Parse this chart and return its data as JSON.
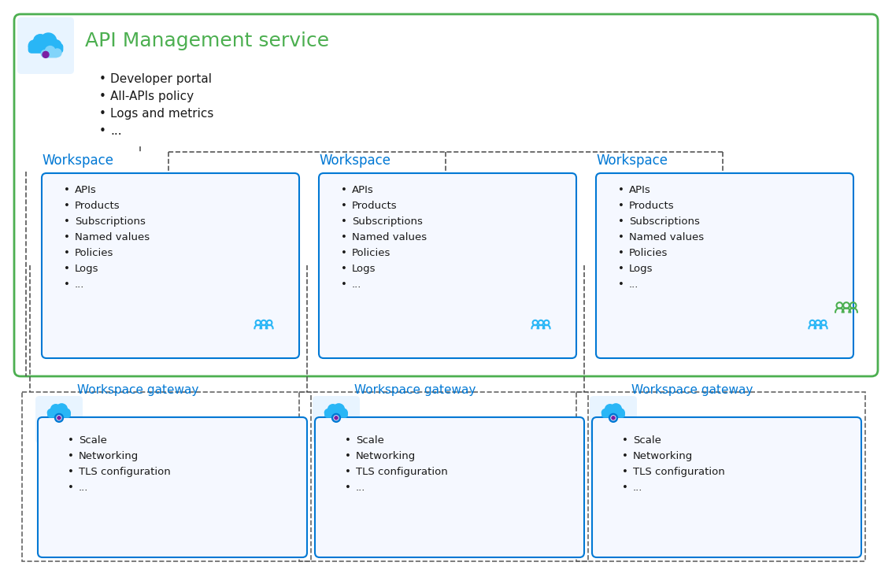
{
  "title": "API Management service",
  "title_color": "#4caf50",
  "workspace_label": "Workspace",
  "workspace_label_color": "#0078d4",
  "gateway_label": "Workspace gateway",
  "gateway_label_color": "#0078d4",
  "service_items": [
    "Developer portal",
    "All-APIs policy",
    "Logs and metrics",
    "..."
  ],
  "workspace_items": [
    "APIs",
    "Products",
    "Subscriptions",
    "Named values",
    "Policies",
    "Logs",
    "..."
  ],
  "gateway_items": [
    "Scale",
    "Networking",
    "TLS configuration",
    "..."
  ],
  "outer_box_color": "#4caf50",
  "inner_box_color": "#0078d4",
  "dashed_box_color": "#555555",
  "bg_color": "#ffffff",
  "icon_bg_color": "#e8f4ff",
  "text_color": "#1a1a1a",
  "n_workspaces": 3
}
